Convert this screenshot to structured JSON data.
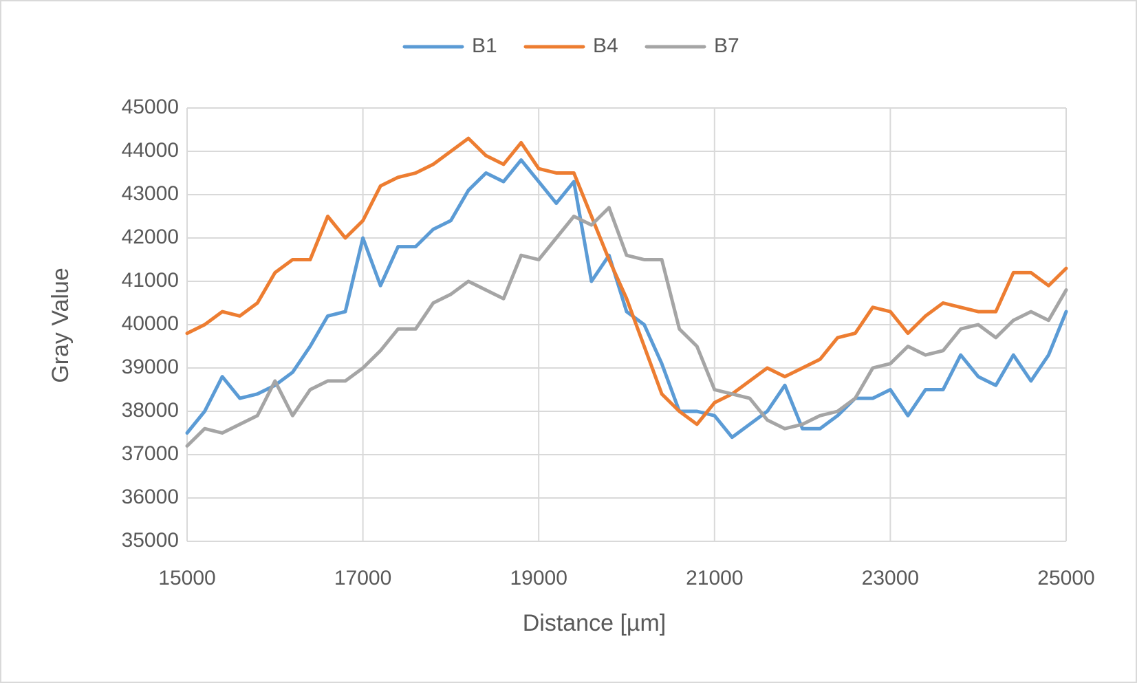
{
  "chart_data": {
    "type": "line",
    "x_label": "Distance [µm]",
    "y_label": "Gray Value",
    "x": [
      15000,
      15200,
      15400,
      15600,
      15800,
      16000,
      16200,
      16400,
      16600,
      16800,
      17000,
      17200,
      17400,
      17600,
      17800,
      18000,
      18200,
      18400,
      18600,
      18800,
      19000,
      19200,
      19400,
      19600,
      19800,
      20000,
      20200,
      20400,
      20600,
      20800,
      21000,
      21200,
      21400,
      21600,
      21800,
      22000,
      22200,
      22400,
      22600,
      22800,
      23000,
      23200,
      23400,
      23600,
      23800,
      24000,
      24200,
      24400,
      24600,
      24800,
      25000
    ],
    "series": [
      {
        "name": "B1",
        "color": "#5b9bd5",
        "values": [
          37500,
          38000,
          38800,
          38300,
          38400,
          38600,
          38900,
          39500,
          40200,
          40300,
          42000,
          40900,
          41800,
          41800,
          42200,
          42400,
          43100,
          43500,
          43300,
          43800,
          43300,
          42800,
          43300,
          41000,
          41600,
          40300,
          40000,
          39100,
          38000,
          38000,
          37900,
          37400,
          37700,
          38000,
          38600,
          37600,
          37600,
          37900,
          38300,
          38300,
          38500,
          37900,
          38500,
          38500,
          39300,
          38800,
          38600,
          39300,
          38700,
          39300,
          40300
        ]
      },
      {
        "name": "B4",
        "color": "#ed7d31",
        "values": [
          39800,
          40000,
          40300,
          40200,
          40500,
          41200,
          41500,
          41500,
          42500,
          42000,
          42400,
          43200,
          43400,
          43500,
          43700,
          44000,
          44300,
          43900,
          43700,
          44200,
          43600,
          43500,
          43500,
          42500,
          41500,
          40600,
          39500,
          38400,
          38000,
          37700,
          38200,
          38400,
          38700,
          39000,
          38800,
          39000,
          39200,
          39700,
          39800,
          40400,
          40300,
          39800,
          40200,
          40500,
          40400,
          40300,
          40300,
          41200,
          41200,
          40900,
          41300
        ]
      },
      {
        "name": "B7",
        "color": "#a5a5a5",
        "values": [
          37200,
          37600,
          37500,
          37700,
          37900,
          38700,
          37900,
          38500,
          38700,
          38700,
          39000,
          39400,
          39900,
          39900,
          40500,
          40700,
          41000,
          40800,
          40600,
          41600,
          41500,
          42000,
          42500,
          42300,
          42700,
          41600,
          41500,
          41500,
          39900,
          39500,
          38500,
          38400,
          38300,
          37800,
          37600,
          37700,
          37900,
          38000,
          38300,
          39000,
          39100,
          39500,
          39300,
          39400,
          39900,
          40000,
          39700,
          40100,
          40300,
          40100,
          40800
        ]
      }
    ],
    "xlim": [
      15000,
      25000
    ],
    "xticks": [
      15000,
      17000,
      19000,
      21000,
      23000,
      25000
    ],
    "ylim": [
      35000,
      45000
    ],
    "yticks": [
      35000,
      36000,
      37000,
      38000,
      39000,
      40000,
      41000,
      42000,
      43000,
      44000,
      45000
    ],
    "grid": true,
    "legend": "top"
  }
}
